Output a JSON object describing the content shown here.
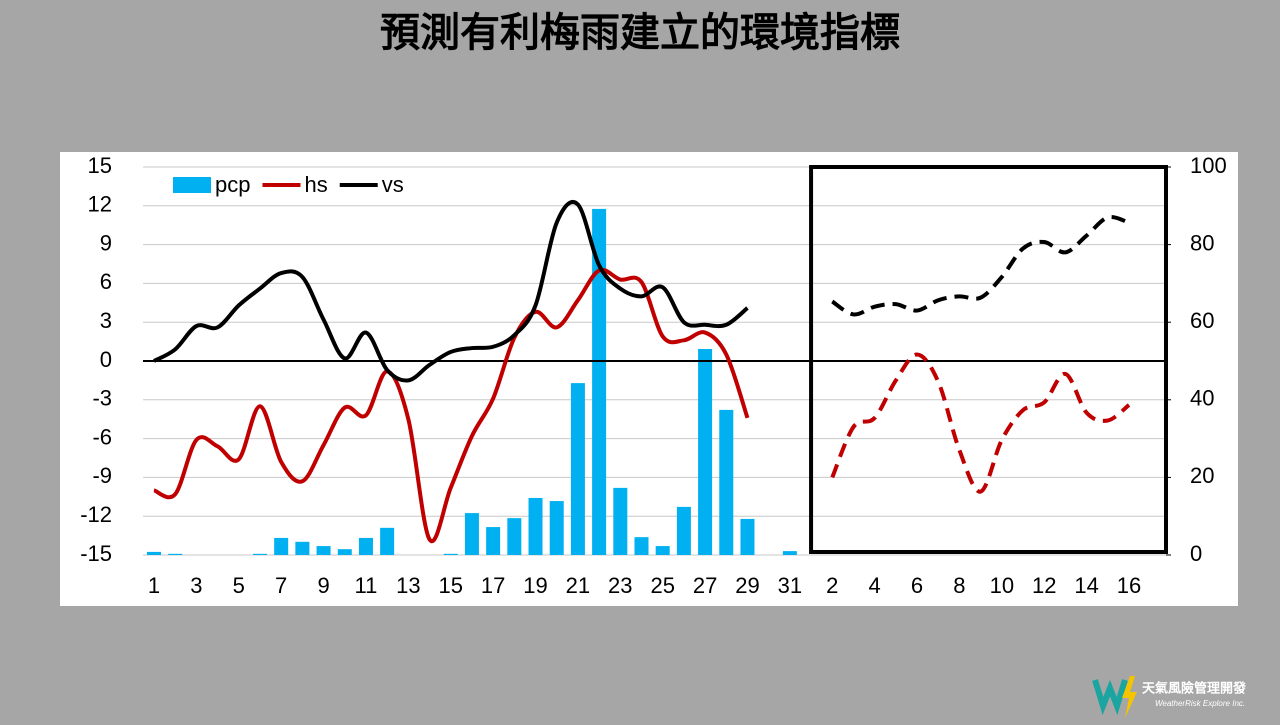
{
  "chart_data": {
    "type": "combo",
    "title": "預測有利梅雨建立的環境指標",
    "categories": [
      "1",
      null,
      "3",
      null,
      "5",
      null,
      "7",
      null,
      "9",
      null,
      "11",
      null,
      "13",
      null,
      "15",
      null,
      "17",
      null,
      "19",
      null,
      "21",
      null,
      "23",
      null,
      "25",
      null,
      "27",
      null,
      "29",
      null,
      "31",
      null,
      "2",
      null,
      "4",
      null,
      "6",
      null,
      "8",
      null,
      "10",
      null,
      "12",
      null,
      "14",
      null,
      "16"
    ],
    "series": [
      {
        "name": "pcp",
        "kind": "bar",
        "axis": "y2",
        "color": "#00b0f0",
        "values": [
          0.8,
          0.3,
          0,
          0,
          0,
          0.3,
          4.4,
          3.4,
          2.3,
          1.5,
          4.4,
          7,
          0,
          0,
          0.3,
          10.8,
          7.2,
          9.5,
          14.7,
          13.9,
          44.3,
          89.2,
          17.3,
          4.6,
          2.3,
          12.4,
          53.1,
          37.4,
          9.3,
          0,
          1,
          null,
          null,
          null,
          null,
          null,
          null,
          null,
          null,
          null,
          null,
          null,
          null,
          null,
          null,
          null,
          null
        ]
      },
      {
        "name": "hs",
        "kind": "line",
        "color": "#c00000",
        "values": [
          -10,
          -10.3,
          -6.1,
          -6.6,
          -7.6,
          -3.5,
          -7.8,
          -9.3,
          -6.5,
          -3.6,
          -4.2,
          -0.8,
          -4.5,
          -13.8,
          -9.8,
          -5.8,
          -2.9,
          1.8,
          3.8,
          2.6,
          4.7,
          7,
          6.3,
          6.1,
          1.9,
          1.6,
          2.2,
          0.5,
          -4.4,
          null,
          null,
          null,
          -9,
          -5.1,
          -4.4,
          -1.5,
          0.5,
          -1.6,
          -6.9,
          -10.1,
          -6.1,
          -3.8,
          -3.2,
          -1,
          -4,
          -4.6,
          -3.4
        ]
      },
      {
        "name": "vs",
        "kind": "line",
        "color": "#000000",
        "values": [
          0,
          0.9,
          2.7,
          2.6,
          4.3,
          5.6,
          6.8,
          6.5,
          3.2,
          0.2,
          2.2,
          -0.7,
          -1.5,
          -0.3,
          0.7,
          1,
          1.1,
          2,
          4.3,
          10.7,
          12.1,
          7.4,
          5.6,
          5,
          5.7,
          3,
          2.8,
          2.8,
          4.1,
          null,
          null,
          null,
          4.6,
          3.6,
          4.2,
          4.4,
          3.9,
          4.7,
          5,
          4.9,
          6.5,
          8.7,
          9.2,
          8.4,
          9.7,
          11.1,
          10.7
        ]
      }
    ],
    "ylim": [
      -15,
      15
    ],
    "yticks": [
      -15,
      -12,
      -9,
      -6,
      -3,
      0,
      3,
      6,
      9,
      12,
      15
    ],
    "y2lim": [
      0,
      100
    ],
    "y2ticks": [
      0,
      20,
      40,
      60,
      80,
      100
    ],
    "forecast_from": 31,
    "grid": true,
    "legend": "upper-left"
  },
  "logo": {
    "name": "天氣風險管理開發",
    "tagline": "WeatherRisk Explore Inc."
  }
}
